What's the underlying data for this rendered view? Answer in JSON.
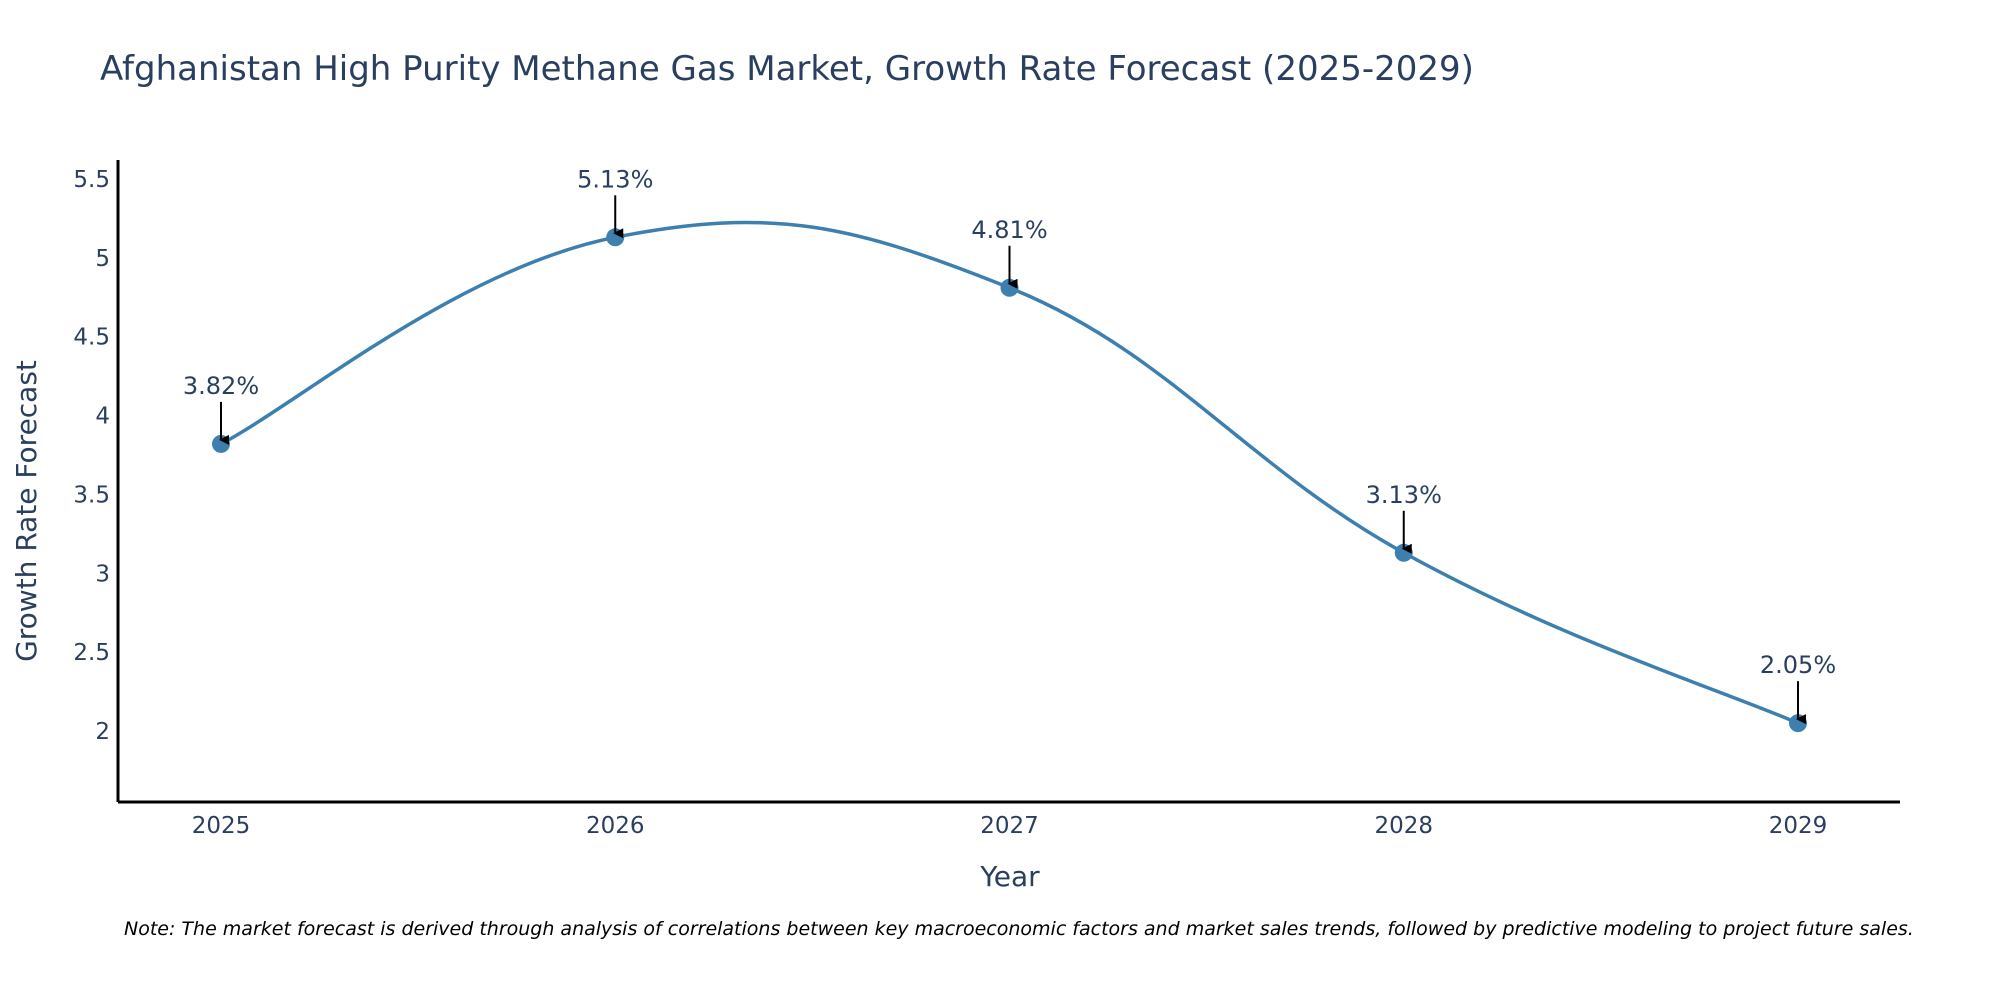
{
  "colors": {
    "line": "#3d7fae",
    "marker": "#3d7fae",
    "axis": "#000000",
    "arrow": "#000000",
    "text": "#2a3f5f"
  },
  "chart_data": {
    "type": "line",
    "title": "Afghanistan High Purity Methane Gas Market, Growth Rate Forecast (2025-2029)",
    "xlabel": "Year",
    "ylabel": "Growth Rate Forecast",
    "categories": [
      "2025",
      "2026",
      "2027",
      "2028",
      "2029"
    ],
    "values": [
      3.82,
      5.13,
      4.81,
      3.13,
      2.05
    ],
    "data_labels": [
      "3.82%",
      "5.13%",
      "4.81%",
      "3.13%",
      "2.05%"
    ],
    "y_ticks": [
      2,
      2.5,
      3,
      3.5,
      4,
      4.5,
      5,
      5.5
    ],
    "y_tick_labels": [
      "2",
      "2.5",
      "3",
      "3.5",
      "4",
      "4.5",
      "5",
      "5.5"
    ],
    "ylim": [
      1.55,
      5.62
    ],
    "line_shape": "spline",
    "grid": false,
    "legend": "none"
  },
  "footnote": "Note: The market forecast is derived through analysis of correlations between key macroeconomic factors and market sales trends, followed by predictive modeling to project future sales."
}
